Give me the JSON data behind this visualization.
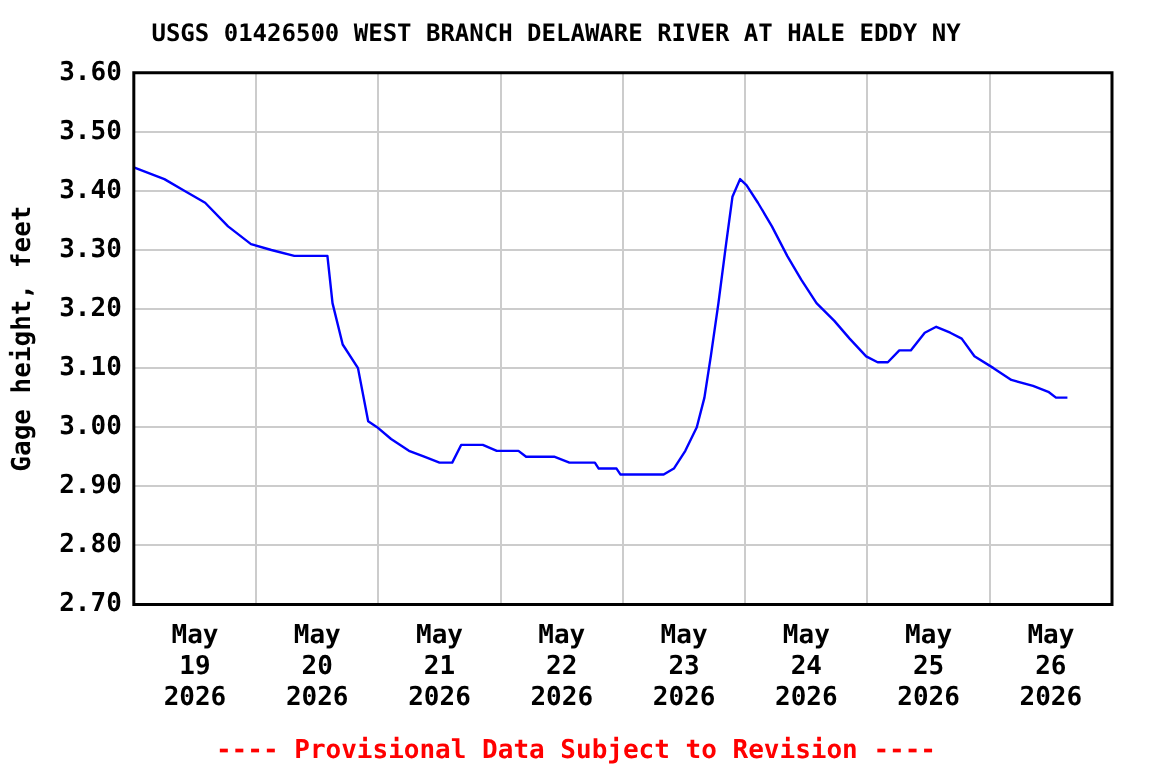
{
  "chart_data": {
    "type": "line",
    "title": "USGS 01426500 WEST BRANCH DELAWARE RIVER AT HALE EDDY NY",
    "ylabel": "Gage height, feet",
    "annotations": [
      "---- Provisional Data Subject to Revision ----"
    ],
    "x": [
      "2026-05-19T00:00",
      "2026-05-19T06:00",
      "2026-05-19T10:00",
      "2026-05-19T14:00",
      "2026-05-19T18:30",
      "2026-05-19T23:00",
      "2026-05-20T03:00",
      "2026-05-20T07:30",
      "2026-05-20T11:30",
      "2026-05-20T14:00",
      "2026-05-20T15:00",
      "2026-05-20T17:00",
      "2026-05-20T20:00",
      "2026-05-20T22:00",
      "2026-05-20T23:45",
      "2026-05-21T02:30",
      "2026-05-21T06:00",
      "2026-05-21T09:00",
      "2026-05-21T12:00",
      "2026-05-21T14:30",
      "2026-05-21T16:15",
      "2026-05-21T20:30",
      "2026-05-21T23:15",
      "2026-05-22T03:30",
      "2026-05-22T05:00",
      "2026-05-22T10:30",
      "2026-05-22T13:30",
      "2026-05-22T18:30",
      "2026-05-22T19:15",
      "2026-05-22T22:45",
      "2026-05-22T23:30",
      "2026-05-23T08:00",
      "2026-05-23T10:00",
      "2026-05-23T12:15",
      "2026-05-23T14:30",
      "2026-05-23T16:00",
      "2026-05-23T17:15",
      "2026-05-23T18:45",
      "2026-05-23T20:15",
      "2026-05-23T21:30",
      "2026-05-23T23:00",
      "2026-05-24T00:15",
      "2026-05-24T02:30",
      "2026-05-24T05:15",
      "2026-05-24T08:15",
      "2026-05-24T11:00",
      "2026-05-24T14:00",
      "2026-05-24T17:30",
      "2026-05-24T20:30",
      "2026-05-24T23:45",
      "2026-05-25T02:00",
      "2026-05-25T04:00",
      "2026-05-25T06:15",
      "2026-05-25T08:30",
      "2026-05-25T11:15",
      "2026-05-25T13:30",
      "2026-05-25T16:15",
      "2026-05-25T18:30",
      "2026-05-25T21:00",
      "2026-05-26T00:45",
      "2026-05-26T04:15",
      "2026-05-26T08:30",
      "2026-05-26T11:30",
      "2026-05-26T13:00",
      "2026-05-26T15:15"
    ],
    "series": [
      {
        "color": "#0000ff",
        "values": [
          3.44,
          3.42,
          3.4,
          3.38,
          3.34,
          3.31,
          3.3,
          3.29,
          3.29,
          3.29,
          3.21,
          3.14,
          3.1,
          3.01,
          3.0,
          2.98,
          2.96,
          2.95,
          2.94,
          2.94,
          2.97,
          2.97,
          2.96,
          2.96,
          2.95,
          2.95,
          2.94,
          2.94,
          2.93,
          2.93,
          2.92,
          2.92,
          2.93,
          2.96,
          3.0,
          3.05,
          3.12,
          3.21,
          3.31,
          3.39,
          3.42,
          3.41,
          3.38,
          3.34,
          3.29,
          3.25,
          3.21,
          3.18,
          3.15,
          3.12,
          3.11,
          3.11,
          3.13,
          3.13,
          3.16,
          3.17,
          3.16,
          3.15,
          3.12,
          3.1,
          3.08,
          3.07,
          3.06,
          3.05,
          3.05
        ]
      }
    ],
    "xlim": [
      "2026-05-19T00:00",
      "2026-05-27T00:00"
    ],
    "xticks": [
      {
        "value": "2026-05-19T12:00",
        "label": "May 19 2026"
      },
      {
        "value": "2026-05-20T00:00",
        "label": null
      },
      {
        "value": "2026-05-20T12:00",
        "label": "May 20 2026"
      },
      {
        "value": "2026-05-21T00:00",
        "label": null
      },
      {
        "value": "2026-05-21T12:00",
        "label": "May 21 2026"
      },
      {
        "value": "2026-05-22T00:00",
        "label": null
      },
      {
        "value": "2026-05-22T12:00",
        "label": "May 22 2026"
      },
      {
        "value": "2026-05-23T00:00",
        "label": null
      },
      {
        "value": "2026-05-23T12:00",
        "label": "May 23 2026"
      },
      {
        "value": "2026-05-24T00:00",
        "label": null
      },
      {
        "value": "2026-05-24T12:00",
        "label": "May 24 2026"
      },
      {
        "value": "2026-05-25T00:00",
        "label": null
      },
      {
        "value": "2026-05-25T12:00",
        "label": "May 25 2026"
      },
      {
        "value": "2026-05-26T00:00",
        "label": null
      },
      {
        "value": "2026-05-26T12:00",
        "label": "May 26 2026"
      }
    ],
    "ylim": [
      2.7,
      3.6
    ],
    "yticks": [
      {
        "value": 2.7,
        "label": "2.70"
      },
      {
        "value": 2.8,
        "label": "2.80"
      },
      {
        "value": 2.9,
        "label": "2.90"
      },
      {
        "value": 3.0,
        "label": "3.00"
      },
      {
        "value": 3.1,
        "label": "3.10"
      },
      {
        "value": 3.2,
        "label": "3.20"
      },
      {
        "value": 3.3,
        "label": "3.30"
      },
      {
        "value": 3.4,
        "label": "3.40"
      },
      {
        "value": 3.5,
        "label": "3.50"
      },
      {
        "value": 3.6,
        "label": "3.60"
      }
    ],
    "grid": true,
    "legend": false,
    "marker": "none",
    "line_style": "solid"
  }
}
